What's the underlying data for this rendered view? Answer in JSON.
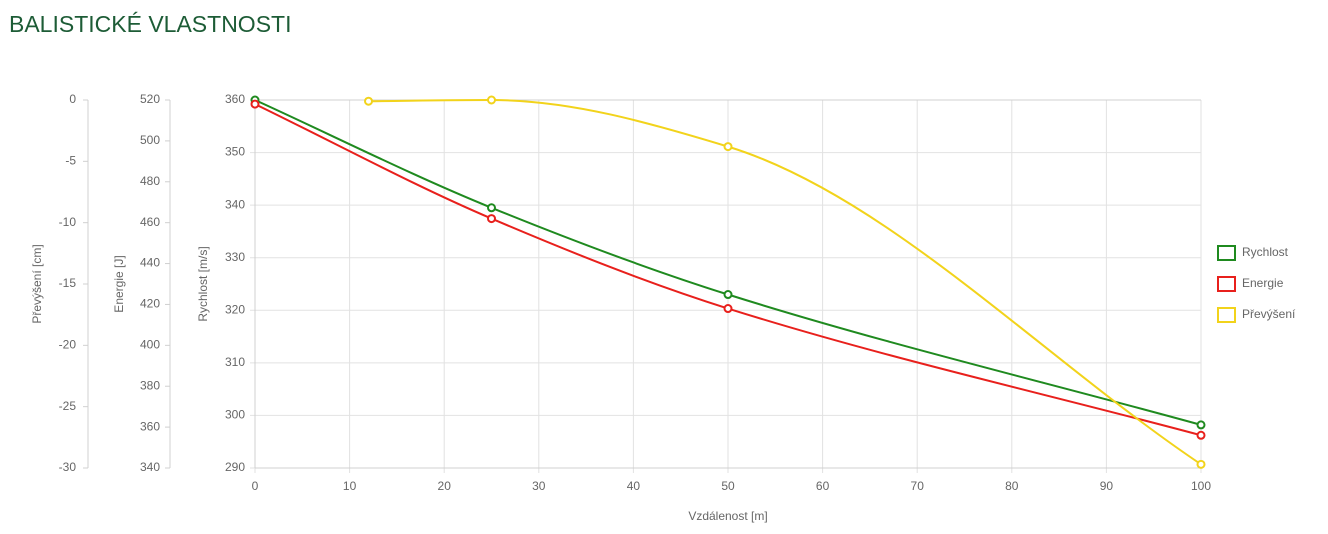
{
  "chart_data": {
    "type": "line",
    "title": "BALISTICKÉ VLASTNOSTI",
    "xlabel": "Vzdálenost [m]",
    "xlim": [
      0,
      100
    ],
    "xticks": [
      0,
      10,
      20,
      30,
      40,
      50,
      60,
      70,
      80,
      90,
      100
    ],
    "ylabel": "Rychlost [m/s]",
    "ylim": [
      290,
      360
    ],
    "yticks": [
      290,
      300,
      310,
      320,
      330,
      340,
      350,
      360
    ],
    "y2label": "Energie [J]",
    "y2lim": [
      340,
      520
    ],
    "y2ticks": [
      340,
      360,
      380,
      400,
      420,
      440,
      460,
      480,
      500,
      520
    ],
    "y3label": "Převýšení [cm]",
    "y3lim": [
      -30,
      0
    ],
    "y3ticks": [
      -30,
      -25,
      -20,
      -15,
      -10,
      -5,
      0
    ],
    "grid": true,
    "legend": "right",
    "series": [
      {
        "name": "Rychlost",
        "color": "#1f8a1f",
        "axis": "y",
        "x": [
          0,
          25,
          50,
          100
        ],
        "values": [
          360,
          339.5,
          323,
          298.2
        ]
      },
      {
        "name": "Energie",
        "color": "#e8201c",
        "axis": "y2",
        "x": [
          0,
          25,
          50,
          100
        ],
        "values": [
          518,
          462,
          418,
          356
        ]
      },
      {
        "name": "Převýšení",
        "color": "#f2d31b",
        "axis": "y3",
        "x": [
          12,
          25,
          50,
          100
        ],
        "values": [
          -0.1,
          0,
          -3.8,
          -29.7
        ]
      }
    ]
  }
}
